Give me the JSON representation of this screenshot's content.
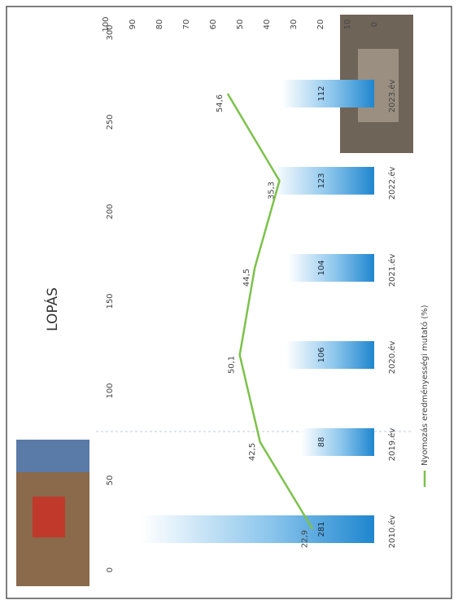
{
  "chart_data": {
    "type": "bar-line",
    "title": "LOPÁS",
    "categories": [
      "2010.év",
      "2019.év",
      "2020.év",
      "2021.év",
      "2022.év",
      "2023.év"
    ],
    "bars": {
      "values": [
        281,
        88,
        106,
        104,
        123,
        112
      ],
      "color": "#2b8fd3"
    },
    "line": {
      "name": "Nyomozás eredményességi mutató (%)",
      "color": "#7cc24a",
      "values": [
        22.9,
        42.5,
        50.1,
        44.5,
        35.3,
        54.6
      ],
      "value_labels": [
        "22,9",
        "42,5",
        "50,1",
        "44,5",
        "35,3",
        "54,6"
      ]
    },
    "ylim": [
      0,
      300
    ],
    "yticks": [
      0,
      50,
      100,
      150,
      200,
      250,
      300
    ],
    "y2lim": [
      0,
      100
    ],
    "y2ticks": [
      0,
      10,
      20,
      30,
      40,
      50,
      60,
      70,
      80,
      90,
      100
    ]
  }
}
